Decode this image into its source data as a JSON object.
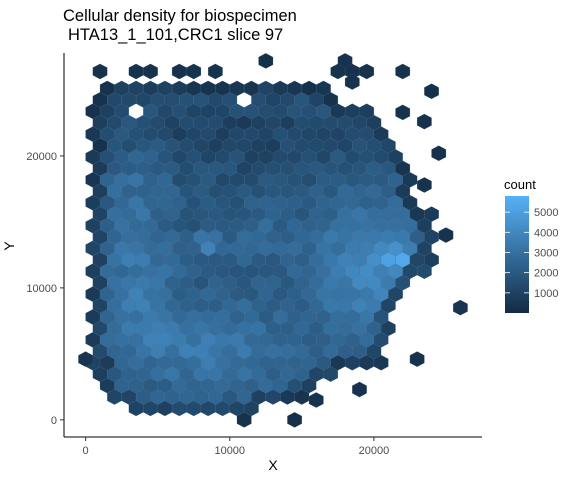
{
  "chart_data": {
    "type": "heatmap",
    "geom": "hexbin",
    "title_lines": [
      "Cellular density for biospecimen",
      "HTA13_1_101,CRC1 slice 97"
    ],
    "xlabel": "X",
    "ylabel": "Y",
    "xlim": [
      -1500,
      27500
    ],
    "ylim": [
      -1300,
      27800
    ],
    "x_ticks": [
      0,
      10000,
      20000
    ],
    "x_tick_labels": [
      "0",
      "10000",
      "20000"
    ],
    "y_ticks": [
      0,
      10000,
      20000
    ],
    "y_tick_labels": [
      "0",
      "10000",
      "20000"
    ],
    "grid": false,
    "hex_width": 1000,
    "legend": {
      "title": "count",
      "position": "right",
      "range": [
        0,
        5800
      ],
      "breaks": [
        1000,
        2000,
        3000,
        4000,
        5000
      ],
      "break_labels": [
        "1000",
        "2000",
        "3000",
        "4000",
        "5000"
      ],
      "low_color": "#132b43",
      "high_color": "#56b1f7"
    },
    "bins": [
      {
        "x": 1000,
        "y": 26400,
        "count": 300
      },
      {
        "x": 3500,
        "y": 26400,
        "count": 300
      },
      {
        "x": 4500,
        "y": 26400,
        "count": 300
      },
      {
        "x": 6500,
        "y": 26400,
        "count": 300
      },
      {
        "x": 7500,
        "y": 26400,
        "count": 300
      },
      {
        "x": 9000,
        "y": 26400,
        "count": 300
      },
      {
        "x": 12500,
        "y": 27200,
        "count": 200
      },
      {
        "x": 18000,
        "y": 27200,
        "count": 300
      },
      {
        "x": 17500,
        "y": 26400,
        "count": 300
      },
      {
        "x": 18500,
        "y": 26400,
        "count": 300
      },
      {
        "x": 19500,
        "y": 26400,
        "count": 300
      },
      {
        "x": 22000,
        "y": 26400,
        "count": 300
      },
      {
        "x": 18500,
        "y": 25600,
        "count": 300
      },
      {
        "x": 24000,
        "y": 24900,
        "count": 200
      },
      {
        "x": 22000,
        "y": 23300,
        "count": 300
      },
      {
        "x": 23500,
        "y": 22600,
        "count": 300
      },
      {
        "x": 24500,
        "y": 20200,
        "count": 300
      },
      {
        "x": 23500,
        "y": 17800,
        "count": 300
      },
      {
        "x": 25000,
        "y": 14000,
        "count": 300
      },
      {
        "x": 26000,
        "y": 8500,
        "count": 400
      },
      {
        "x": 23000,
        "y": 4600,
        "count": 300
      },
      {
        "x": 19000,
        "y": 2300,
        "count": 300
      },
      {
        "x": 14500,
        "y": 0,
        "count": 200
      },
      {
        "x": 11000,
        "y": 0,
        "count": 300
      },
      {
        "x": 16000,
        "y": 1500,
        "count": 300
      },
      {
        "x": 0,
        "y": 4600,
        "count": 400
      }
    ],
    "density_model": {
      "clip_polygon": [
        [
          1500,
          25600
        ],
        [
          4000,
          25800
        ],
        [
          8000,
          25300
        ],
        [
          11000,
          25700
        ],
        [
          14000,
          25900
        ],
        [
          16500,
          26000
        ],
        [
          17000,
          24800
        ],
        [
          18000,
          24200
        ],
        [
          20000,
          23700
        ],
        [
          21500,
          21500
        ],
        [
          22500,
          18800
        ],
        [
          23000,
          16800
        ],
        [
          24500,
          15200
        ],
        [
          24300,
          12500
        ],
        [
          23300,
          10700
        ],
        [
          22000,
          9700
        ],
        [
          21500,
          8000
        ],
        [
          21000,
          5700
        ],
        [
          20500,
          4200
        ],
        [
          18000,
          3800
        ],
        [
          16000,
          2600
        ],
        [
          15000,
          1200
        ],
        [
          13500,
          1500
        ],
        [
          11500,
          700
        ],
        [
          9500,
          600
        ],
        [
          7000,
          0
        ],
        [
          5000,
          600
        ],
        [
          3000,
          800
        ],
        [
          1500,
          1500
        ],
        [
          700,
          2700
        ],
        [
          300,
          5500
        ],
        [
          100,
          9000
        ],
        [
          200,
          13000
        ],
        [
          300,
          16500
        ],
        [
          300,
          20000
        ],
        [
          400,
          23000
        ],
        [
          800,
          24800
        ]
      ],
      "interior_base": 0.27,
      "blobs": [
        {
          "cx": 19500,
          "cy": 11500,
          "sx": 3800,
          "sy": 5600,
          "amp": 0.4
        },
        {
          "cx": 21800,
          "cy": 12400,
          "sx": 1100,
          "sy": 1000,
          "amp": 0.4
        },
        {
          "cx": 8500,
          "cy": 5500,
          "sx": 6500,
          "sy": 4200,
          "amp": 0.3
        },
        {
          "cx": 3500,
          "cy": 12000,
          "sx": 2700,
          "sy": 6200,
          "amp": 0.28
        },
        {
          "cx": 12000,
          "cy": 14000,
          "sx": 3800,
          "sy": 3200,
          "amp": 0.15
        },
        {
          "cx": 8500,
          "cy": 13500,
          "sx": 800,
          "sy": 800,
          "amp": 0.4
        },
        {
          "cx": 3500,
          "cy": 18000,
          "sx": 2500,
          "sy": 2500,
          "amp": 0.1
        },
        {
          "cx": 12000,
          "cy": 21500,
          "sx": 4500,
          "sy": 2500,
          "amp": -0.08
        },
        {
          "cx": 7000,
          "cy": 22000,
          "sx": 3500,
          "sy": 2000,
          "amp": -0.05
        }
      ],
      "hole_bins": [
        [
          3500,
          23300
        ],
        [
          11000,
          24100
        ]
      ]
    }
  }
}
